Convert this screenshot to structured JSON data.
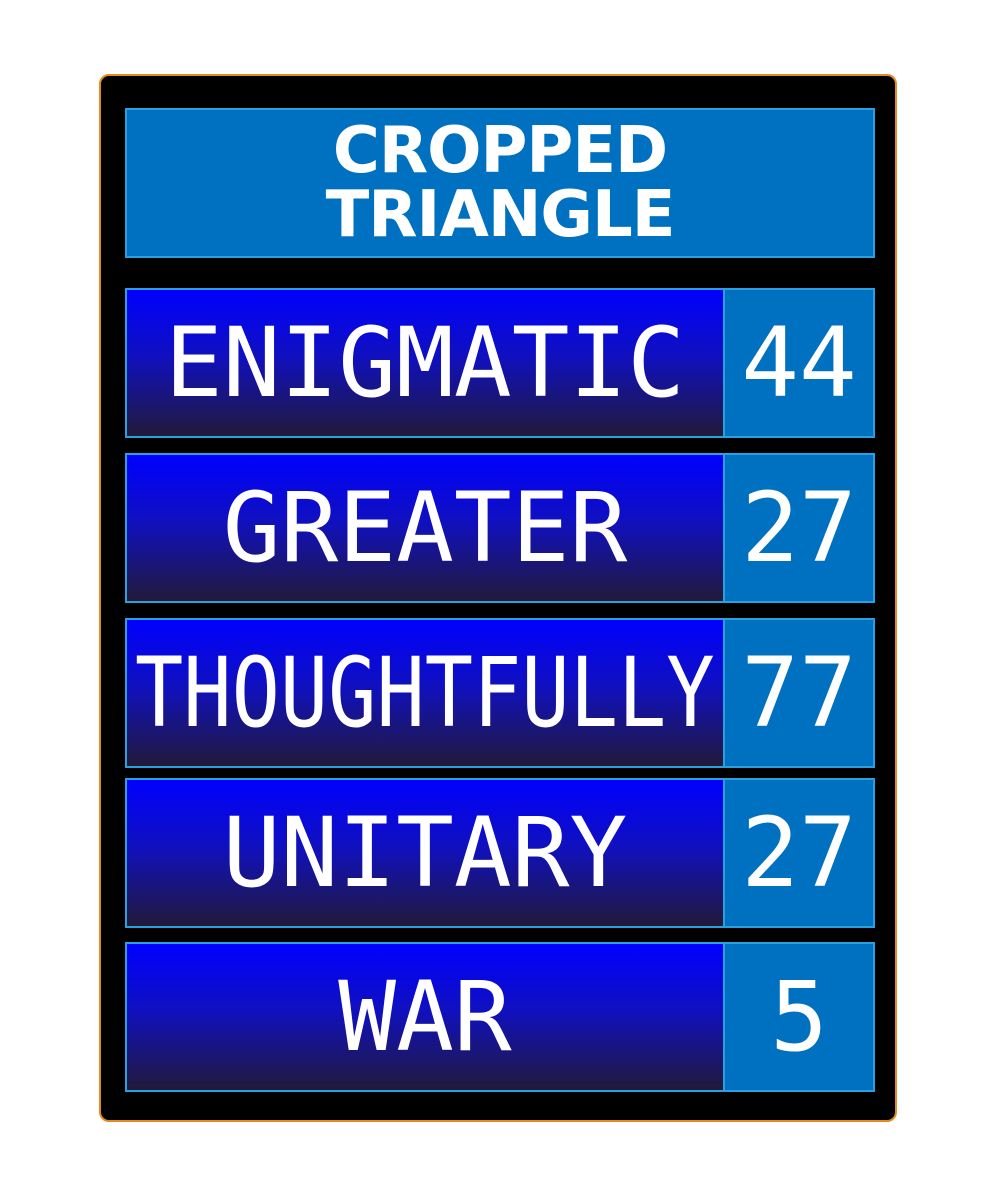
{
  "title": {
    "line1": "CROPPED",
    "line2": "TRIANGLE"
  },
  "answers": [
    {
      "text": "ENIGMATIC",
      "score": "44"
    },
    {
      "text": "GREATER",
      "score": "27"
    },
    {
      "text": "THOUGHTFULLY",
      "score": "77"
    },
    {
      "text": "UNITARY",
      "score": "27"
    },
    {
      "text": "WAR",
      "score": "5"
    }
  ],
  "colors": {
    "board_background": "#000000",
    "board_border": "#e88a1a",
    "title_background": "#0070c0",
    "answer_gradient_top": "#0000ff",
    "answer_gradient_bottom": "#221a3a",
    "score_background": "#0070c0",
    "cell_border": "#2aa0e0",
    "text": "#ffffff"
  }
}
